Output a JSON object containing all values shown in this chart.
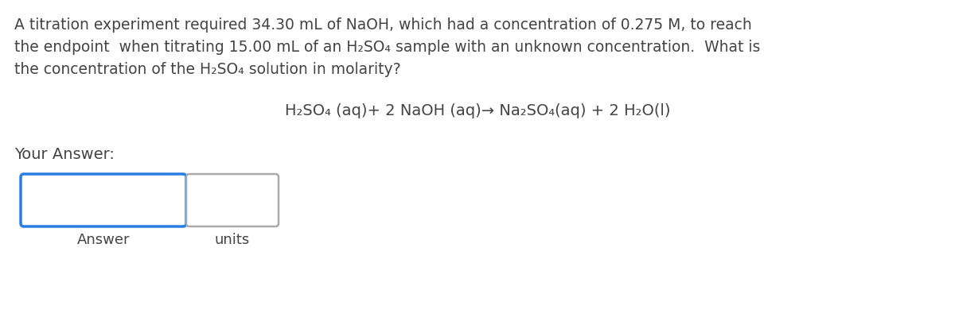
{
  "background_color": "#ffffff",
  "line1": "A titration experiment required 34.30 mL of NaOH, which had a concentration of 0.275 M, to reach",
  "line2": "the endpoint  when titrating 15.00 mL of an H₂SO₄ sample with an unknown concentration.  What is",
  "line3": "the concentration of the H₂SO₄ solution in molarity?",
  "equation_text": "H₂SO₄ (aq)+ 2 NaOH (aq)→ Na₂SO₄(aq) + 2 H₂O(l)",
  "your_answer_label": "Your Answer:",
  "answer_label": "Answer",
  "units_label": "units",
  "box1_color": "#2a7de1",
  "box2_color": "#aaaaaa",
  "text_color": "#444444",
  "font_size_para": 13.5,
  "font_size_eq": 14.0,
  "font_size_label": 14.0,
  "font_size_sublabel": 13.0
}
